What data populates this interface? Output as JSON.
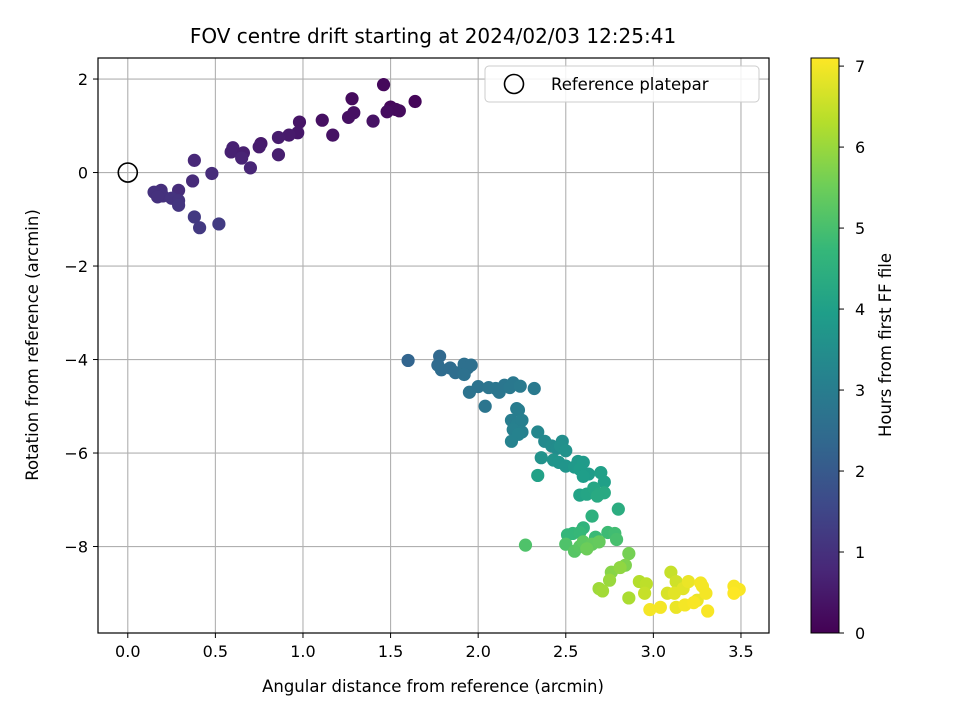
{
  "chart_data": {
    "type": "scatter",
    "title": "FOV centre drift starting at 2024/02/03 12:25:41",
    "xlabel": "Angular distance from reference (arcmin)",
    "ylabel": "Rotation from reference (arcmin)",
    "xlim": [
      -0.17,
      3.66
    ],
    "ylim": [
      -9.85,
      2.45
    ],
    "xticks": [
      0.0,
      0.5,
      1.0,
      1.5,
      2.0,
      2.5,
      3.0,
      3.5
    ],
    "xtick_labels": [
      "0.0",
      "0.5",
      "1.0",
      "1.5",
      "2.0",
      "2.5",
      "3.0",
      "3.5"
    ],
    "yticks": [
      2,
      0,
      -2,
      -4,
      -6,
      -8
    ],
    "ytick_labels": [
      "2",
      "0",
      "−2",
      "−4",
      "−6",
      "−8"
    ],
    "grid": true,
    "legend": {
      "position": "top-right",
      "entries": [
        "Reference platepar"
      ]
    },
    "colorbar": {
      "label": "Hours from first FF file",
      "range": [
        0,
        7.1
      ],
      "ticks": [
        0,
        1,
        2,
        3,
        4,
        5,
        6,
        7
      ],
      "tick_labels": [
        "0",
        "1",
        "2",
        "3",
        "4",
        "5",
        "6",
        "7"
      ],
      "colormap": "viridis"
    },
    "reference_point": {
      "x": 0.0,
      "y": 0.0,
      "name": "Reference platepar"
    },
    "colormap_stops": [
      "#440154",
      "#482878",
      "#3e4989",
      "#31688e",
      "#26828e",
      "#1f9e89",
      "#35b779",
      "#6ece58",
      "#b5de2b",
      "#fde725"
    ],
    "points": [
      [
        1.46,
        1.88,
        0.15
      ],
      [
        1.28,
        1.58,
        0.2
      ],
      [
        1.64,
        1.52,
        0.1
      ],
      [
        1.5,
        1.4,
        0.15
      ],
      [
        1.53,
        1.35,
        0.2
      ],
      [
        1.48,
        1.3,
        0.25
      ],
      [
        1.55,
        1.32,
        0.2
      ],
      [
        1.29,
        1.28,
        0.3
      ],
      [
        1.26,
        1.18,
        0.3
      ],
      [
        1.11,
        1.12,
        0.3
      ],
      [
        1.4,
        1.1,
        0.35
      ],
      [
        0.98,
        1.08,
        0.4
      ],
      [
        1.17,
        0.8,
        0.35
      ],
      [
        0.97,
        0.85,
        0.45
      ],
      [
        0.92,
        0.8,
        0.5
      ],
      [
        0.86,
        0.75,
        0.55
      ],
      [
        0.76,
        0.62,
        0.5
      ],
      [
        0.75,
        0.55,
        0.55
      ],
      [
        0.6,
        0.53,
        0.65
      ],
      [
        0.59,
        0.44,
        0.65
      ],
      [
        0.66,
        0.42,
        0.6
      ],
      [
        0.65,
        0.31,
        0.7
      ],
      [
        0.86,
        0.38,
        0.6
      ],
      [
        0.7,
        0.1,
        0.75
      ],
      [
        0.38,
        0.26,
        0.8
      ],
      [
        0.48,
        -0.02,
        0.9
      ],
      [
        0.37,
        -0.18,
        0.85
      ],
      [
        0.29,
        -0.38,
        0.9
      ],
      [
        0.19,
        -0.38,
        0.95
      ],
      [
        0.15,
        -0.42,
        1.0
      ],
      [
        0.2,
        -0.5,
        1.0
      ],
      [
        0.25,
        -0.55,
        1.05
      ],
      [
        0.17,
        -0.52,
        1.0
      ],
      [
        0.29,
        -0.6,
        1.05
      ],
      [
        0.29,
        -0.7,
        1.1
      ],
      [
        0.38,
        -0.95,
        1.2
      ],
      [
        0.41,
        -1.18,
        1.2
      ],
      [
        0.52,
        -1.1,
        1.25
      ],
      [
        1.6,
        -4.02,
        2.3
      ],
      [
        1.78,
        -3.93,
        2.4
      ],
      [
        1.77,
        -4.12,
        2.45
      ],
      [
        1.79,
        -4.22,
        2.5
      ],
      [
        1.84,
        -4.18,
        2.5
      ],
      [
        1.87,
        -4.28,
        2.55
      ],
      [
        1.92,
        -4.1,
        2.6
      ],
      [
        1.94,
        -4.18,
        2.6
      ],
      [
        1.96,
        -4.12,
        2.6
      ],
      [
        1.92,
        -4.32,
        2.65
      ],
      [
        1.95,
        -4.7,
        2.7
      ],
      [
        2.0,
        -4.58,
        2.7
      ],
      [
        2.04,
        -5.0,
        2.75
      ],
      [
        2.06,
        -4.6,
        2.75
      ],
      [
        2.1,
        -4.62,
        2.8
      ],
      [
        2.12,
        -4.7,
        2.8
      ],
      [
        2.15,
        -4.55,
        2.8
      ],
      [
        2.18,
        -4.6,
        2.85
      ],
      [
        2.2,
        -4.5,
        2.85
      ],
      [
        2.24,
        -4.57,
        2.9
      ],
      [
        2.32,
        -4.62,
        2.9
      ],
      [
        2.22,
        -5.05,
        2.95
      ],
      [
        2.23,
        -5.08,
        3.0
      ],
      [
        2.19,
        -5.3,
        3.0
      ],
      [
        2.22,
        -5.4,
        3.05
      ],
      [
        2.25,
        -5.3,
        3.05
      ],
      [
        2.2,
        -5.5,
        3.1
      ],
      [
        2.25,
        -5.55,
        3.1
      ],
      [
        2.23,
        -5.6,
        3.15
      ],
      [
        2.19,
        -5.75,
        3.15
      ],
      [
        2.34,
        -5.55,
        3.3
      ],
      [
        2.38,
        -5.75,
        3.35
      ],
      [
        2.42,
        -5.85,
        3.4
      ],
      [
        2.45,
        -5.9,
        3.45
      ],
      [
        2.48,
        -5.75,
        3.5
      ],
      [
        2.47,
        -5.85,
        3.55
      ],
      [
        2.5,
        -5.95,
        3.6
      ],
      [
        2.36,
        -6.1,
        3.6
      ],
      [
        2.43,
        -6.15,
        3.65
      ],
      [
        2.46,
        -6.2,
        3.7
      ],
      [
        2.5,
        -6.28,
        3.7
      ],
      [
        2.55,
        -6.3,
        3.8
      ],
      [
        2.57,
        -6.18,
        3.8
      ],
      [
        2.6,
        -6.2,
        3.85
      ],
      [
        2.63,
        -6.45,
        3.9
      ],
      [
        2.58,
        -6.35,
        3.9
      ],
      [
        2.6,
        -6.5,
        3.95
      ],
      [
        2.7,
        -6.42,
        4.0
      ],
      [
        2.72,
        -6.62,
        4.0
      ],
      [
        2.34,
        -6.48,
        4.05
      ],
      [
        2.58,
        -6.9,
        4.1
      ],
      [
        2.62,
        -6.88,
        4.15
      ],
      [
        2.66,
        -6.75,
        4.2
      ],
      [
        2.69,
        -6.88,
        4.25
      ],
      [
        2.72,
        -6.85,
        4.3
      ],
      [
        2.68,
        -6.92,
        4.3
      ],
      [
        2.8,
        -7.2,
        4.4
      ],
      [
        2.65,
        -7.35,
        4.5
      ],
      [
        2.6,
        -7.6,
        4.6
      ],
      [
        2.54,
        -7.72,
        4.7
      ],
      [
        2.51,
        -7.75,
        4.7
      ],
      [
        2.58,
        -7.7,
        4.75
      ],
      [
        2.67,
        -7.8,
        4.8
      ],
      [
        2.74,
        -7.7,
        4.85
      ],
      [
        2.78,
        -7.72,
        4.9
      ],
      [
        2.79,
        -7.85,
        5.0
      ],
      [
        2.27,
        -7.97,
        5.1
      ],
      [
        2.5,
        -7.95,
        5.1
      ],
      [
        2.55,
        -8.1,
        5.2
      ],
      [
        2.58,
        -8.0,
        5.25
      ],
      [
        2.6,
        -7.9,
        5.3
      ],
      [
        2.65,
        -7.95,
        5.35
      ],
      [
        2.69,
        -7.9,
        5.4
      ],
      [
        2.62,
        -8.05,
        5.5
      ],
      [
        2.86,
        -8.15,
        5.6
      ],
      [
        2.84,
        -8.4,
        5.7
      ],
      [
        2.76,
        -8.55,
        5.8
      ],
      [
        2.81,
        -8.45,
        5.9
      ],
      [
        2.75,
        -8.72,
        6.0
      ],
      [
        2.69,
        -8.9,
        6.05
      ],
      [
        2.71,
        -8.95,
        6.1
      ],
      [
        2.86,
        -9.1,
        6.2
      ],
      [
        2.92,
        -8.75,
        6.3
      ],
      [
        2.96,
        -8.8,
        6.4
      ],
      [
        2.95,
        -9.0,
        6.5
      ],
      [
        3.1,
        -8.55,
        6.5
      ],
      [
        3.13,
        -8.75,
        6.6
      ],
      [
        3.08,
        -9.0,
        6.7
      ],
      [
        3.12,
        -9.0,
        6.8
      ],
      [
        3.17,
        -8.9,
        6.8
      ],
      [
        3.2,
        -8.75,
        6.9
      ],
      [
        3.25,
        -9.15,
        6.9
      ],
      [
        3.28,
        -8.85,
        7.0
      ],
      [
        3.3,
        -9.0,
        7.0
      ],
      [
        3.27,
        -8.78,
        7.0
      ],
      [
        3.46,
        -8.85,
        7.05
      ],
      [
        3.49,
        -8.92,
        7.05
      ],
      [
        3.46,
        -9.0,
        7.1
      ],
      [
        2.98,
        -9.35,
        7.0
      ],
      [
        3.04,
        -9.3,
        7.0
      ],
      [
        3.13,
        -9.3,
        6.9
      ],
      [
        3.18,
        -9.25,
        7.0
      ],
      [
        3.23,
        -9.2,
        7.05
      ],
      [
        3.31,
        -9.38,
        7.05
      ]
    ]
  }
}
